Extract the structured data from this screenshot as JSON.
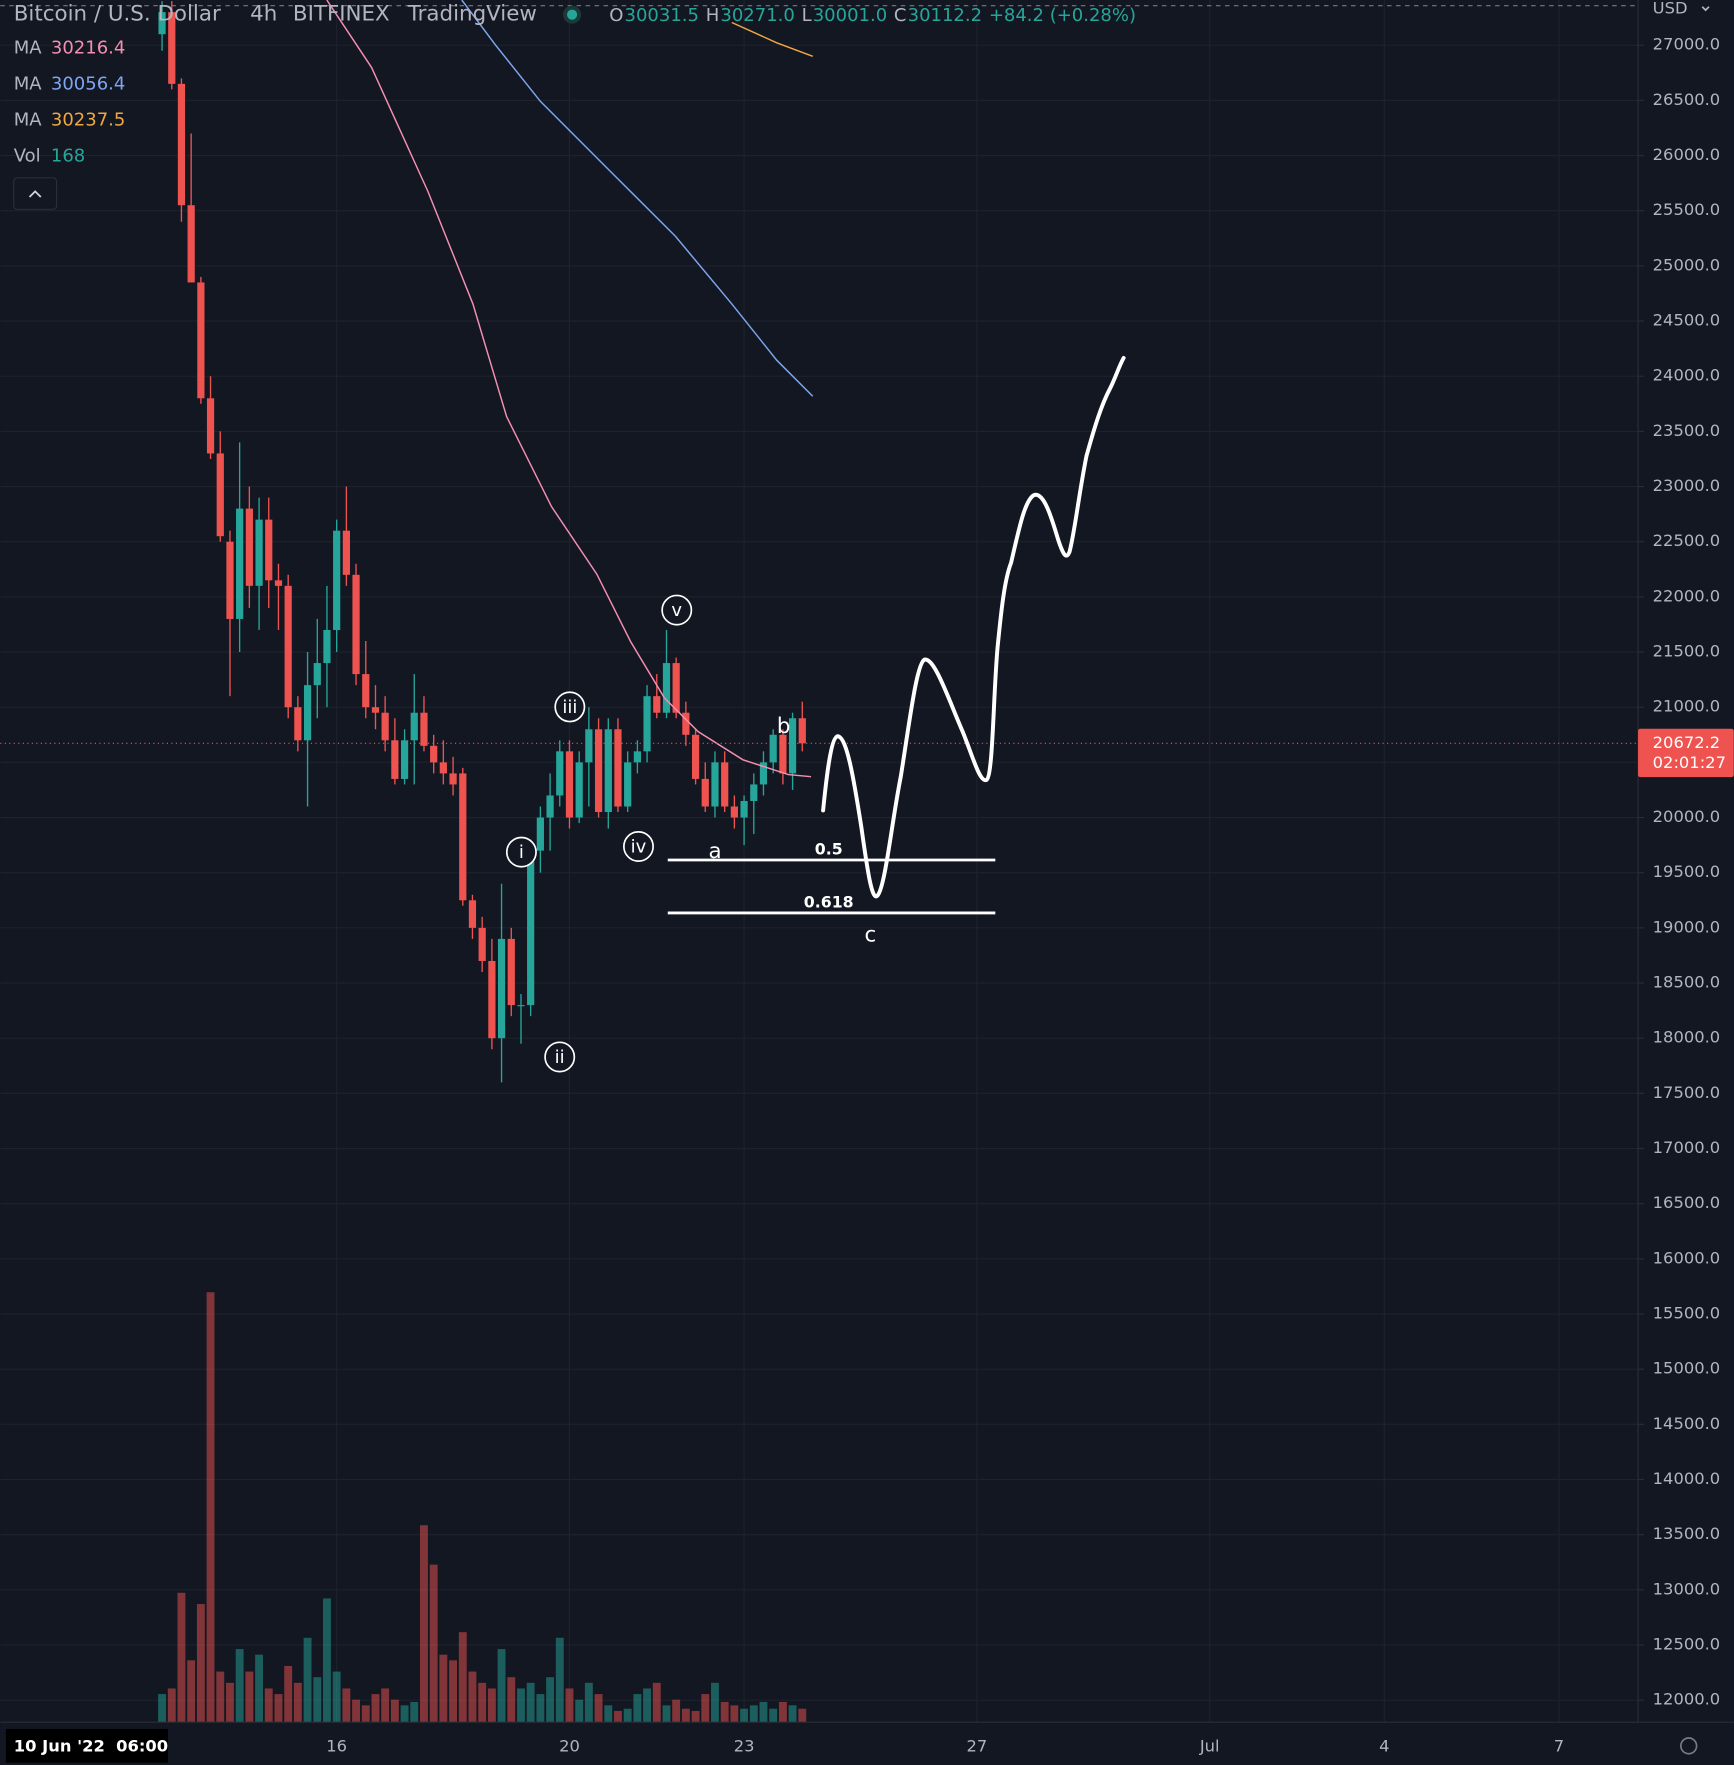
{
  "header": {
    "symbol": "Bitcoin / U.S. Dollar",
    "interval": "4h",
    "exchange": "BITFINEX",
    "source": "TradingView",
    "ohlc": [
      {
        "key": "O",
        "value": "30031.5"
      },
      {
        "key": "H",
        "value": "30271.0"
      },
      {
        "key": "L",
        "value": "30001.0"
      },
      {
        "key": "C",
        "value": "30112.2"
      }
    ],
    "change": "+84.2 (+0.28%)"
  },
  "currency": "USD",
  "countdown": "02:01:27",
  "crosshair_label": "10 Jun '22  06:00",
  "chart_data": {
    "type": "candlestick",
    "x": [
      13,
      13.167,
      13.333,
      13.5,
      13.667,
      13.833,
      14,
      14.167,
      14.333,
      14.5,
      14.667,
      14.833,
      15,
      15.167,
      15.333,
      15.5,
      15.667,
      15.833,
      16,
      16.167,
      16.333,
      16.5,
      16.667,
      16.833,
      17,
      17.167,
      17.333,
      17.5,
      17.667,
      17.833,
      18,
      18.167,
      18.333,
      18.5,
      18.667,
      18.833,
      19,
      19.167,
      19.333,
      19.5,
      19.667,
      19.833,
      20,
      20.167,
      20.333,
      20.5,
      20.667,
      20.833,
      21,
      21.167,
      21.333,
      21.5,
      21.667,
      21.833,
      22,
      22.167,
      22.333,
      22.5,
      22.667,
      22.833,
      23,
      23.167,
      23.333,
      23.5,
      23.667,
      23.833,
      24
    ],
    "open": [
      27100,
      27300,
      26650,
      25550,
      24850,
      23800,
      23300,
      22500,
      21800,
      22800,
      22100,
      22700,
      22150,
      22100,
      21000,
      20700,
      21200,
      21400,
      21700,
      22600,
      22200,
      21300,
      21000,
      20950,
      20700,
      20350,
      20700,
      20950,
      20650,
      20500,
      20400,
      20400,
      19250,
      19000,
      18700,
      18000,
      18900,
      18300,
      18300,
      19700,
      20000,
      20200,
      20600,
      20000,
      20500,
      20800,
      20050,
      20800,
      20100,
      20500,
      20600,
      21100,
      20950,
      21400,
      20950,
      20750,
      20350,
      20100,
      20500,
      20100,
      20000,
      20150,
      20300,
      20500,
      20750,
      20400,
      20900
    ],
    "high": [
      27400,
      27400,
      26700,
      26200,
      24900,
      24000,
      23500,
      22600,
      23400,
      23000,
      22900,
      22900,
      22300,
      22200,
      21100,
      21500,
      21800,
      22100,
      22700,
      23000,
      22300,
      21600,
      21200,
      21100,
      20900,
      20800,
      21300,
      21100,
      20750,
      20700,
      20550,
      20450,
      19300,
      19100,
      18900,
      19400,
      19000,
      18400,
      19800,
      20100,
      20400,
      20700,
      20700,
      20600,
      21000,
      20900,
      20900,
      20900,
      20600,
      20700,
      21200,
      21300,
      21700,
      21450,
      21050,
      20800,
      20500,
      20600,
      20600,
      20200,
      20200,
      20400,
      20600,
      20800,
      20800,
      20950,
      21050
    ],
    "low": [
      26950,
      26600,
      25400,
      24850,
      23750,
      23250,
      22500,
      21100,
      21500,
      21900,
      21700,
      21900,
      21700,
      20900,
      20600,
      20100,
      20900,
      21000,
      21500,
      22100,
      21200,
      20900,
      20800,
      20600,
      20300,
      20300,
      20300,
      20600,
      20400,
      20300,
      20200,
      19200,
      18900,
      18600,
      17900,
      17600,
      18200,
      17950,
      18200,
      19500,
      19700,
      20100,
      19900,
      19950,
      20100,
      20000,
      19900,
      20050,
      20050,
      20400,
      20500,
      20900,
      20900,
      20900,
      20650,
      20300,
      20050,
      20000,
      20050,
      19900,
      19750,
      19850,
      20200,
      20400,
      20300,
      20250,
      20600
    ],
    "close": [
      27300,
      26650,
      25550,
      24850,
      23800,
      23300,
      22550,
      21800,
      22800,
      22100,
      22700,
      22150,
      22100,
      21000,
      20700,
      21200,
      21400,
      21700,
      22600,
      22200,
      21300,
      21000,
      20950,
      20700,
      20350,
      20700,
      20950,
      20650,
      20500,
      20400,
      20300,
      19250,
      19000,
      18700,
      18000,
      18900,
      18300,
      18300,
      19700,
      20000,
      20200,
      20600,
      20000,
      20500,
      20800,
      20050,
      20800,
      20100,
      20500,
      20600,
      21100,
      20950,
      21400,
      20950,
      20750,
      20350,
      20100,
      20500,
      20100,
      20000,
      20150,
      20300,
      20500,
      20750,
      20400,
      20900,
      20672.2
    ],
    "up_color": "#26a69a",
    "down_color": "#ef5350",
    "volume_name": "Vol",
    "volume": [
      350,
      420,
      1610,
      770,
      1470,
      5348,
      630,
      490,
      910,
      630,
      840,
      420,
      350,
      700,
      490,
      1050,
      560,
      1540,
      630,
      420,
      280,
      210,
      350,
      420,
      280,
      210,
      252,
      2450,
      1960,
      840,
      770,
      1120,
      630,
      490,
      420,
      910,
      560,
      420,
      490,
      350,
      560,
      1050,
      420,
      280,
      490,
      350,
      210,
      140,
      168,
      350,
      420,
      490,
      210,
      280,
      168,
      140,
      350,
      490,
      252,
      210,
      168,
      210,
      252,
      168,
      252,
      210,
      168
    ],
    "volume_lim": [
      0,
      21420
    ],
    "series": [
      {
        "name": "MA",
        "last": 30216.4,
        "color": "#f48fb1",
        "x": [
          15.83,
          16.6,
          17.567,
          18.34,
          18.92,
          19.69,
          20.47,
          21.05,
          21.63,
          22.21,
          22.98,
          23.76,
          24.15
        ],
        "values": [
          27410,
          26798,
          25676,
          24655,
          23635,
          22819,
          22206,
          21594,
          21084,
          20778,
          20523,
          20390,
          20370
        ]
      },
      {
        "name": "MA",
        "last": 30056.4,
        "color": "#7ea6f0",
        "x": [
          18.15,
          18.73,
          19.5,
          20.66,
          21.82,
          22.79,
          23.56,
          24.18
        ],
        "values": [
          27410,
          27002,
          26492,
          25880,
          25268,
          24655,
          24145,
          23819
        ]
      },
      {
        "name": "MA",
        "last": 30237.5,
        "color": "#f0a742",
        "x": [
          22.79,
          23.56,
          24.18
        ],
        "values": [
          27206,
          27022,
          26900
        ]
      }
    ],
    "last_price": 20672.2,
    "fib_levels": [
      {
        "ratio": 0.5,
        "price": 19615
      },
      {
        "ratio": 0.618,
        "price": 19135
      }
    ],
    "annotations": [
      "i",
      "ii",
      "iii",
      "iv",
      "v",
      "a",
      "b",
      "c"
    ],
    "xlim": [
      10.22,
      38.36
    ],
    "xticks": [
      16,
      20,
      23,
      27,
      {
        "value": 31,
        "label": "Jul"
      },
      {
        "value": 34,
        "label": "4"
      },
      {
        "value": 37,
        "label": "7"
      }
    ],
    "ylim": [
      11800,
      27410
    ],
    "yticks": [
      {
        "value": 12000,
        "label": "12000.0"
      },
      {
        "value": 12500,
        "label": "12500.0"
      },
      {
        "value": 13000,
        "label": "13000.0"
      },
      {
        "value": 13500,
        "label": "13500.0"
      },
      {
        "value": 14000,
        "label": "14000.0"
      },
      {
        "value": 14500,
        "label": "14500.0"
      },
      {
        "value": 15000,
        "label": "15000.0"
      },
      {
        "value": 15500,
        "label": "15500.0"
      },
      {
        "value": 16000,
        "label": "16000.0"
      },
      {
        "value": 16500,
        "label": "16500.0"
      },
      {
        "value": 17000,
        "label": "17000.0"
      },
      {
        "value": 17500,
        "label": "17500.0"
      },
      {
        "value": 18000,
        "label": "18000.0"
      },
      {
        "value": 18500,
        "label": "18500.0"
      },
      {
        "value": 19000,
        "label": "19000.0"
      },
      {
        "value": 19500,
        "label": "19500.0"
      },
      {
        "value": 20000,
        "label": "20000.0"
      },
      {
        "value": 20500,
        "label": "20500.0"
      },
      {
        "value": 21000,
        "label": "21000.0"
      },
      {
        "value": 21500,
        "label": "21500.0"
      },
      {
        "value": 22000,
        "label": "22000.0"
      },
      {
        "value": 22500,
        "label": "22500.0"
      },
      {
        "value": 23000,
        "label": "23000.0"
      },
      {
        "value": 23500,
        "label": "23500.0"
      },
      {
        "value": 24000,
        "label": "24000.0"
      },
      {
        "value": 24500,
        "label": "24500.0"
      },
      {
        "value": 25000,
        "label": "25000.0"
      },
      {
        "value": 25500,
        "label": "25500.0"
      },
      {
        "value": 26000,
        "label": "26000.0"
      },
      {
        "value": 26500,
        "label": "26500.0"
      },
      {
        "value": 27000,
        "label": "27000.0"
      }
    ],
    "grid": true
  }
}
